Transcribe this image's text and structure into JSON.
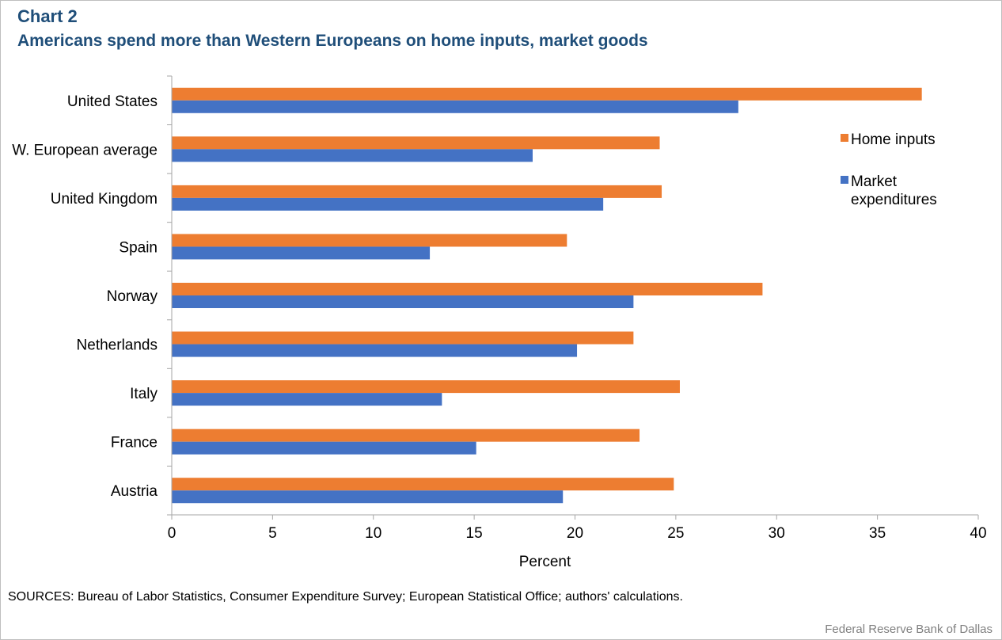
{
  "header": {
    "chart_label": "Chart 2",
    "title": "Americans spend more than Western Europeans on home inputs, market goods"
  },
  "footer": {
    "sources": "SOURCES: Bureau of Labor Statistics, Consumer Expenditure Survey; European Statistical Office; authors' calculations.",
    "credit": "Federal Reserve Bank of Dallas"
  },
  "chart_data": {
    "type": "bar",
    "orientation": "horizontal",
    "title": "Americans spend more than Western Europeans on home inputs, market goods",
    "xlabel": "Percent",
    "ylabel": "",
    "xlim": [
      0,
      40
    ],
    "xticks": [
      0,
      5,
      10,
      15,
      20,
      25,
      30,
      35,
      40
    ],
    "grid": false,
    "legend_position": "right",
    "categories": [
      "United States",
      "W. European average",
      "United Kingdom",
      "Spain",
      "Norway",
      "Netherlands",
      "Italy",
      "France",
      "Austria"
    ],
    "series": [
      {
        "name": "Home inputs",
        "color": "#ed7d31",
        "values": [
          37.2,
          24.2,
          24.3,
          19.6,
          29.3,
          22.9,
          25.2,
          23.2,
          24.9
        ]
      },
      {
        "name": "Market expenditures",
        "legend_lines": [
          "Market",
          "expenditures"
        ],
        "color": "#4472c4",
        "values": [
          28.1,
          17.9,
          21.4,
          12.8,
          22.9,
          20.1,
          13.4,
          15.1,
          19.4
        ]
      }
    ]
  }
}
